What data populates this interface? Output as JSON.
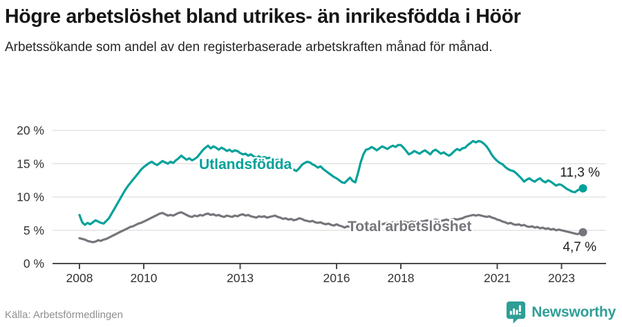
{
  "header": {
    "title": "Högre arbetslöshet bland utrikes- än inrikesfödda i Höör",
    "subtitle": "Arbetssökande som andel av den registerbaserade arbetskraften månad för månad."
  },
  "footer": {
    "source": "Källa: Arbetsförmedlingen",
    "brand": "Newsworthy"
  },
  "colors": {
    "accent_teal": "#00a19a",
    "series_gray": "#76757b",
    "grid": "#e0e0e0",
    "axis": "#4a4a4a",
    "tick_text": "#333333",
    "annotation_text": "#1d1d1d",
    "logo_teal": "#2f9e96"
  },
  "chart_data": {
    "type": "line",
    "title": "",
    "xlabel": "",
    "ylabel": "",
    "frequency": "monthly",
    "x_start_year": 2008,
    "x_start_month": 1,
    "x_tick_years": [
      2008,
      2010,
      2013,
      2016,
      2018,
      2021,
      2023
    ],
    "y_ticks": [
      0,
      5,
      10,
      15,
      20
    ],
    "y_tick_suffix": " %",
    "ylim": [
      0,
      20
    ],
    "grid": "horizontal",
    "legend_position": "inline-labels",
    "series": [
      {
        "name": "Utlandsfödda",
        "color": "#00a19a",
        "end_label": "11,3 %",
        "end_value": 11.3,
        "values": [
          7.3,
          6.2,
          5.8,
          6.1,
          5.9,
          6.2,
          6.5,
          6.3,
          6.1,
          6.0,
          6.4,
          6.8,
          7.5,
          8.2,
          8.9,
          9.6,
          10.3,
          11.0,
          11.6,
          12.1,
          12.6,
          13.1,
          13.6,
          14.1,
          14.5,
          14.8,
          15.1,
          15.3,
          15.0,
          14.8,
          15.1,
          15.4,
          15.2,
          15.0,
          15.3,
          15.1,
          15.5,
          15.8,
          16.2,
          15.9,
          15.6,
          15.8,
          15.5,
          15.7,
          16.0,
          16.5,
          17.0,
          17.4,
          17.7,
          17.3,
          17.6,
          17.4,
          17.1,
          17.4,
          17.2,
          16.9,
          17.1,
          16.8,
          17.0,
          16.9,
          16.6,
          16.4,
          16.5,
          16.2,
          16.4,
          16.1,
          15.9,
          16.1,
          15.8,
          16.0,
          15.8,
          15.9,
          15.8,
          15.5,
          15.6,
          15.3,
          15.1,
          15.2,
          14.9,
          14.5,
          14.1,
          13.9,
          14.3,
          14.8,
          15.1,
          15.3,
          15.2,
          14.9,
          14.7,
          14.4,
          14.6,
          14.2,
          13.9,
          13.6,
          13.3,
          13.0,
          12.8,
          12.5,
          12.2,
          12.1,
          12.5,
          12.9,
          12.4,
          12.2,
          13.6,
          15.2,
          16.4,
          17.1,
          17.2,
          17.5,
          17.3,
          17.0,
          17.3,
          17.6,
          17.4,
          17.2,
          17.5,
          17.7,
          17.5,
          17.8,
          17.8,
          17.4,
          16.9,
          16.4,
          16.6,
          16.9,
          16.7,
          16.5,
          16.8,
          17.0,
          16.7,
          16.4,
          16.9,
          17.1,
          16.8,
          16.5,
          16.7,
          16.4,
          16.2,
          16.5,
          16.9,
          17.2,
          17.0,
          17.3,
          17.4,
          17.8,
          18.1,
          18.4,
          18.2,
          18.4,
          18.3,
          18.0,
          17.6,
          17.0,
          16.3,
          15.8,
          15.4,
          15.1,
          14.9,
          14.5,
          14.2,
          14.0,
          13.9,
          13.6,
          13.2,
          12.8,
          12.3,
          12.6,
          12.8,
          12.5,
          12.3,
          12.6,
          12.8,
          12.4,
          12.2,
          12.5,
          12.3,
          12.0,
          11.7,
          11.9,
          11.8,
          11.5,
          11.2,
          11.0,
          10.8,
          10.7,
          11.0,
          11.2,
          11.3
        ]
      },
      {
        "name": "Total arbetslöshet",
        "color": "#76757b",
        "end_label": "4,7 %",
        "end_value": 4.7,
        "values": [
          3.8,
          3.7,
          3.6,
          3.4,
          3.3,
          3.2,
          3.3,
          3.5,
          3.4,
          3.6,
          3.7,
          3.9,
          4.1,
          4.3,
          4.5,
          4.7,
          4.9,
          5.1,
          5.3,
          5.5,
          5.6,
          5.8,
          6.0,
          6.1,
          6.3,
          6.5,
          6.7,
          6.9,
          7.1,
          7.3,
          7.5,
          7.6,
          7.4,
          7.2,
          7.3,
          7.2,
          7.4,
          7.6,
          7.7,
          7.5,
          7.3,
          7.1,
          7.0,
          7.2,
          7.1,
          7.3,
          7.2,
          7.4,
          7.5,
          7.3,
          7.4,
          7.2,
          7.3,
          7.1,
          7.0,
          7.2,
          7.1,
          7.0,
          7.2,
          7.1,
          7.3,
          7.4,
          7.2,
          7.3,
          7.1,
          7.0,
          6.9,
          7.1,
          7.0,
          7.1,
          6.9,
          7.0,
          7.1,
          7.2,
          7.0,
          6.9,
          6.7,
          6.8,
          6.6,
          6.7,
          6.5,
          6.6,
          6.8,
          6.7,
          6.5,
          6.4,
          6.3,
          6.4,
          6.2,
          6.1,
          6.2,
          6.0,
          5.9,
          6.0,
          5.8,
          5.7,
          5.9,
          5.7,
          5.6,
          5.4,
          5.6,
          5.5,
          5.4,
          5.6,
          5.5,
          5.7,
          5.6,
          5.8,
          5.8,
          6.0,
          5.9,
          5.8,
          6.0,
          5.9,
          6.0,
          6.1,
          6.0,
          6.2,
          6.1,
          6.2,
          6.2,
          6.3,
          6.2,
          6.1,
          6.3,
          6.2,
          6.3,
          6.4,
          6.3,
          6.4,
          6.5,
          6.4,
          6.5,
          6.6,
          6.5,
          6.4,
          6.5,
          6.6,
          6.5,
          6.6,
          6.7,
          6.6,
          6.7,
          6.8,
          7.0,
          7.1,
          7.2,
          7.3,
          7.2,
          7.3,
          7.2,
          7.1,
          7.0,
          7.1,
          6.9,
          6.8,
          6.6,
          6.5,
          6.3,
          6.2,
          6.0,
          6.1,
          5.9,
          5.8,
          5.9,
          5.7,
          5.8,
          5.6,
          5.5,
          5.6,
          5.4,
          5.5,
          5.3,
          5.4,
          5.2,
          5.3,
          5.1,
          5.2,
          5.0,
          5.1,
          5.0,
          4.9,
          4.8,
          4.7,
          4.6,
          4.5,
          4.4,
          4.6,
          4.7
        ]
      }
    ]
  }
}
